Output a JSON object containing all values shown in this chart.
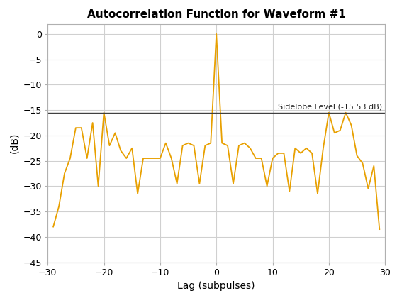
{
  "title": "Autocorrelation Function for Waveform #1",
  "xlabel": "Lag (subpulses)",
  "ylabel": "(dB)",
  "xlim": [
    -30,
    30
  ],
  "ylim": [
    -45,
    2
  ],
  "yticks": [
    0,
    -5,
    -10,
    -15,
    -20,
    -25,
    -30,
    -35,
    -40,
    -45
  ],
  "xticks": [
    -30,
    -20,
    -10,
    0,
    10,
    20,
    30
  ],
  "sidelobe_level": -15.53,
  "sidelobe_label": "Sidelobe Level (-15.53 dB)",
  "line_color": "#E8A000",
  "hline_color": "#404040",
  "background_color": "#ffffff",
  "grid_color": "#d0d0d0",
  "lags": [
    -29,
    -28,
    -27,
    -26,
    -25,
    -24,
    -23,
    -22,
    -21,
    -20,
    -19,
    -18,
    -17,
    -16,
    -15,
    -14,
    -13,
    -12,
    -11,
    -10,
    -9,
    -8,
    -7,
    -6,
    -5,
    -4,
    -3,
    -2,
    -1,
    0,
    1,
    2,
    3,
    4,
    5,
    6,
    7,
    8,
    9,
    10,
    11,
    12,
    13,
    14,
    15,
    16,
    17,
    18,
    19,
    20,
    21,
    22,
    23,
    24,
    25,
    26,
    27,
    28,
    29
  ],
  "values": [
    -38.0,
    -34.0,
    -27.5,
    -24.5,
    -18.5,
    -18.5,
    -24.5,
    -17.5,
    -30.0,
    -15.5,
    -22.0,
    -19.5,
    -23.0,
    -24.5,
    -22.5,
    -31.5,
    -24.5,
    -24.5,
    -24.5,
    -24.5,
    -21.5,
    -24.5,
    -29.5,
    -22.0,
    -21.5,
    -22.0,
    -29.5,
    -22.0,
    -21.5,
    0.0,
    -21.5,
    -22.0,
    -29.5,
    -22.0,
    -21.5,
    -22.5,
    -24.5,
    -24.5,
    -30.0,
    -24.5,
    -23.5,
    -23.5,
    -31.0,
    -22.5,
    -23.5,
    -22.5,
    -23.5,
    -31.5,
    -22.5,
    -15.5,
    -19.5,
    -19.0,
    -15.5,
    -18.0,
    -24.0,
    -25.5,
    -30.5,
    -26.0,
    -38.5
  ]
}
